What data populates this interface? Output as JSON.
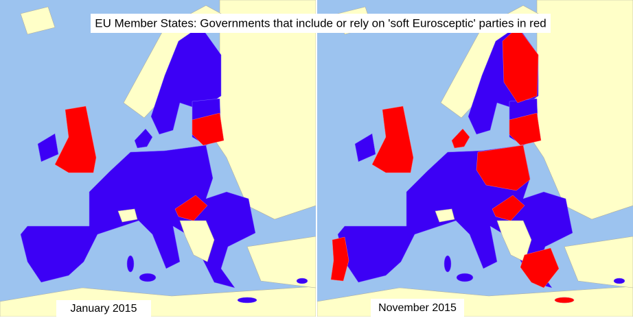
{
  "title": "EU Member States: Governments that include or rely on 'soft Eurosceptic' parties in red",
  "panels": [
    {
      "label": "January 2015"
    },
    {
      "label": "November 2015"
    }
  ]
}
